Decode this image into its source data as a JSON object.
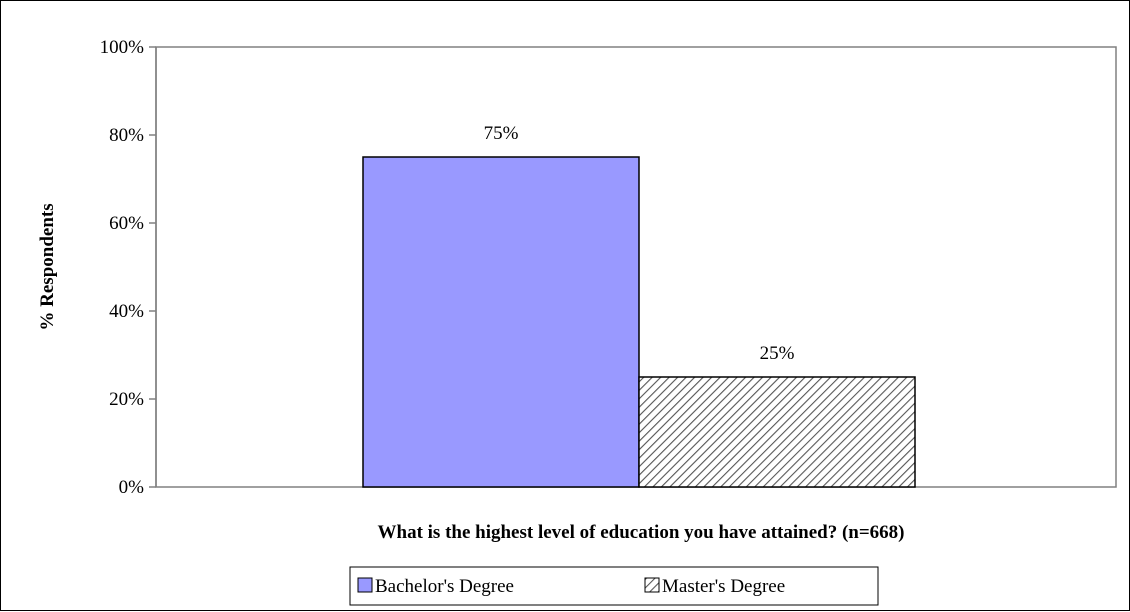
{
  "chart_data": {
    "type": "bar",
    "categories": [
      "Bachelor's Degree",
      "Master's Degree"
    ],
    "values": [
      75,
      25
    ],
    "data_labels": [
      "75%",
      "25%"
    ],
    "xlabel": "What is the highest level of education you have attained? (n=668)",
    "ylabel": "% Respondents",
    "ylim": [
      0,
      100
    ],
    "yticks": [
      0,
      20,
      40,
      60,
      80,
      100
    ],
    "ytick_labels": [
      "0%",
      "20%",
      "40%",
      "60%",
      "80%",
      "100%"
    ],
    "grid": false,
    "legend": {
      "placement": "bottom",
      "entries": [
        "Bachelor's Degree",
        "Master's Degree"
      ]
    },
    "colors": {
      "bachelors_fill": "#9999ff",
      "masters_pattern": "diagonal-hatch",
      "masters_hatch_color": "#555555",
      "axis": "#808080",
      "bar_outline": "#000000"
    }
  }
}
